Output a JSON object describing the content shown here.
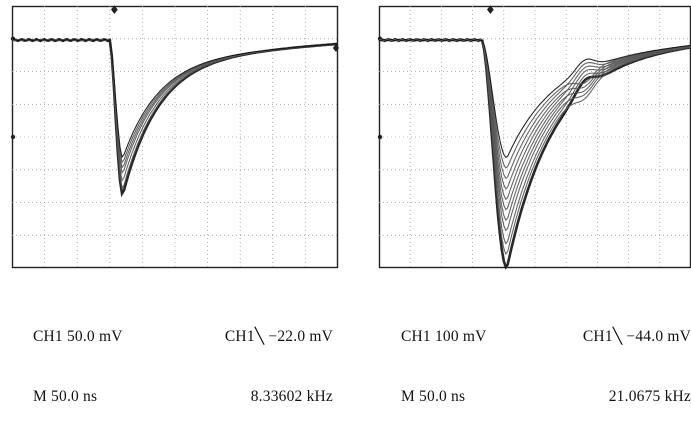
{
  "scopes": [
    {
      "channel_scale": "CH1 50.0 mV",
      "trigger": "CH1",
      "trigger_level": "−22.0 mV",
      "timebase": "M 50.0 ns",
      "frequency": "8.33602 kHz",
      "baseline_level": 0.87,
      "traces_peak_levels": [
        0.28,
        0.3,
        0.33,
        0.36,
        0.38,
        0.4,
        0.42
      ],
      "recovery_level": 0.8
    },
    {
      "channel_scale": "CH1 100 mV",
      "trigger": "CH1",
      "trigger_level": "−44.0 mV",
      "timebase": "M 50.0 ns",
      "frequency": "21.0675 kHz",
      "baseline_level": 0.87,
      "traces_peak_levels": [
        0.0,
        0.05,
        0.09,
        0.14,
        0.18,
        0.22,
        0.26,
        0.3,
        0.34,
        0.38,
        0.42
      ],
      "recovery_level": 0.8
    }
  ]
}
